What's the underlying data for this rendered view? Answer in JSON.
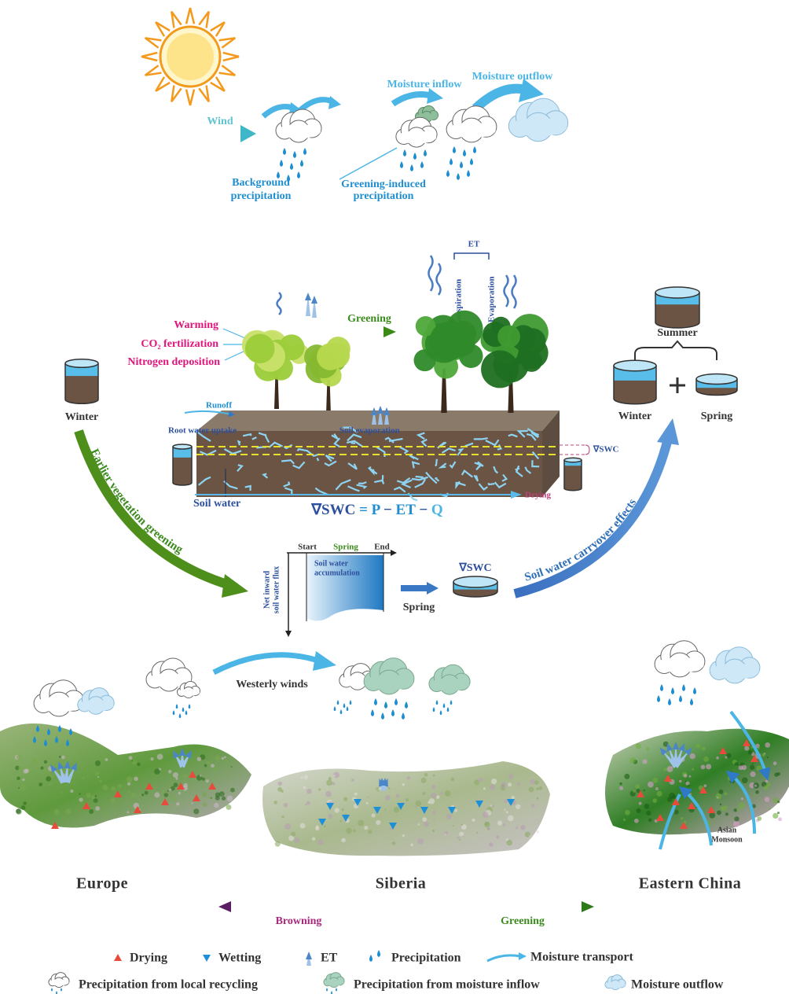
{
  "top_panel": {
    "wind": "Wind",
    "background_precipitation": [
      "Background",
      "precipitation"
    ],
    "moisture_inflow": "Moisture inflow",
    "moisture_outflow": "Moisture outflow",
    "greening_induced_precipitation": [
      "Greening-induced",
      "precipitation"
    ]
  },
  "middle_panel": {
    "et": "ET",
    "transpiration": "Transpiration",
    "evaporation": "Evaporation",
    "greening": "Greening",
    "drivers": [
      "Warming",
      "CO₂ fertilization",
      "Nitrogen deposition"
    ],
    "winter_left": "Winter",
    "runoff": "Runoff",
    "root_water_uptake": "Root water uptake",
    "soil_evaporation": "Soil evaporation",
    "soil_water": "Soil water",
    "equation": [
      "∇SWC",
      "=",
      "P",
      "−",
      "ET",
      "−",
      "Q"
    ],
    "drying": "Drying",
    "swc_label": "∇SWC",
    "summer": "Summer",
    "winter_right": "Winter",
    "spring_right": "Spring",
    "earlier_greening": "Earlier vegetation greening",
    "carryover": "Soil water carryover effects",
    "inset": {
      "start": "Start",
      "spring": "Spring",
      "end": "End",
      "accumulation": [
        "Soil water",
        "accumulation"
      ],
      "y_axis": [
        "Net inward",
        "soil water flux"
      ]
    },
    "spring_arrow": "Spring",
    "swc_spring": "∇SWC"
  },
  "bottom_panel": {
    "westerly_winds": "Westerly winds",
    "asian_monsoon": [
      "Asian",
      "Monsoon"
    ],
    "regions": [
      "Europe",
      "Siberia",
      "Eastern China"
    ],
    "browning": "Browning",
    "greening": "Greening"
  },
  "legend": {
    "items": [
      "Drying",
      "Wetting",
      "ET",
      "Precipitation",
      "Moisture transport",
      "Precipitation from local recycling",
      "Precipitation from moisture inflow",
      "Moisture outflow"
    ]
  }
}
